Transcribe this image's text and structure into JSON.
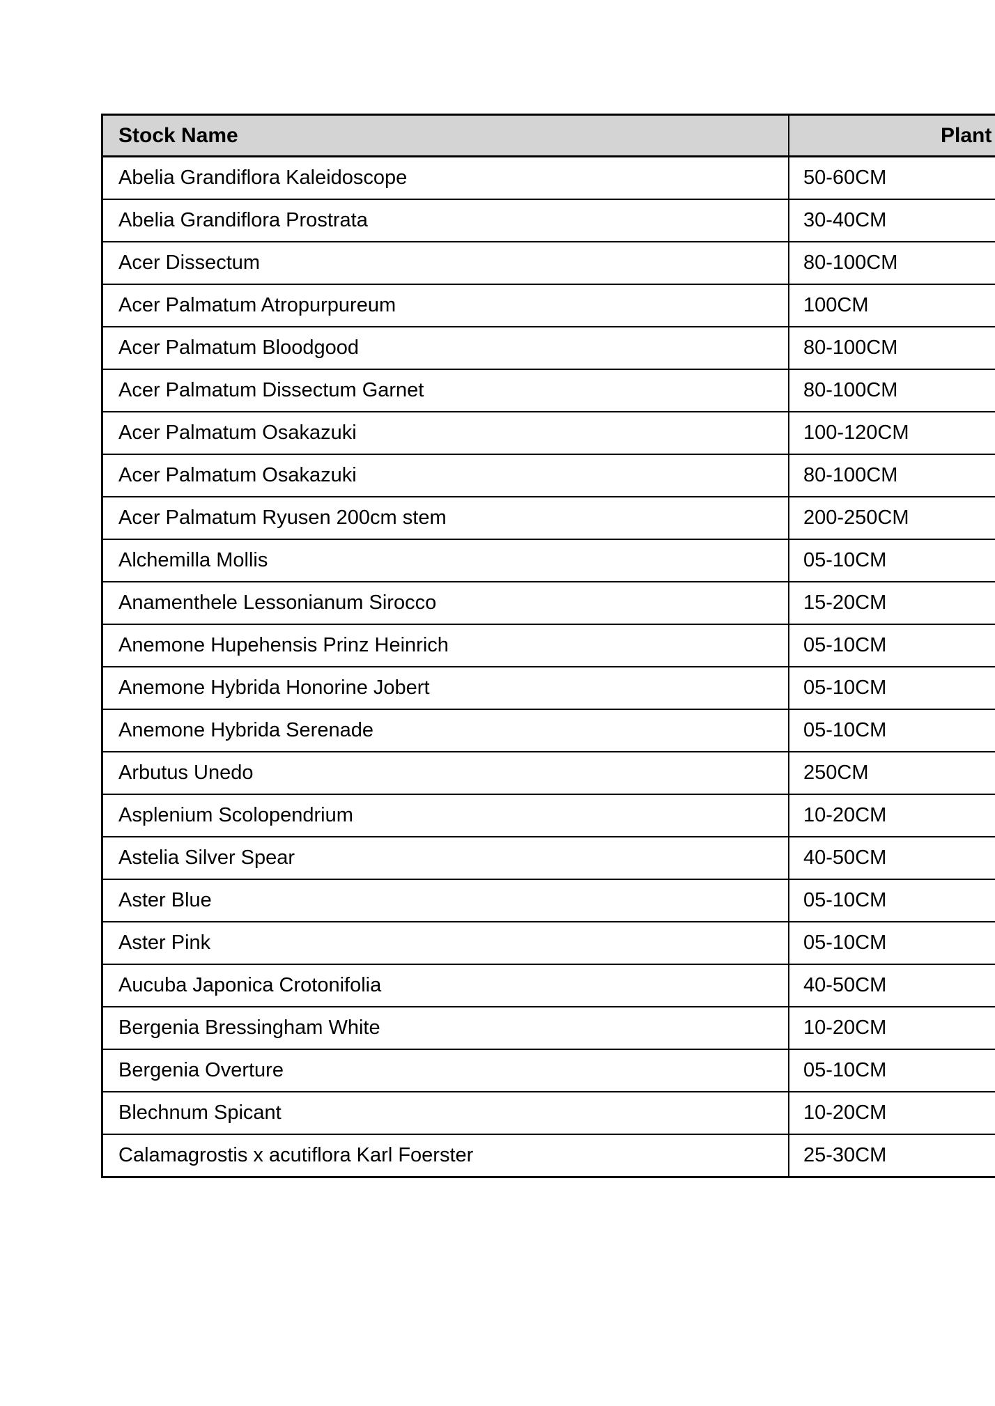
{
  "table": {
    "header": {
      "stock_name": "Stock Name",
      "plant_size": "Plant"
    },
    "rows": [
      {
        "name": "Abelia Grandiflora Kaleidoscope",
        "size": "50-60CM"
      },
      {
        "name": "Abelia Grandiflora Prostrata",
        "size": "30-40CM"
      },
      {
        "name": "Acer Dissectum",
        "size": "80-100CM"
      },
      {
        "name": "Acer Palmatum Atropurpureum",
        "size": "100CM"
      },
      {
        "name": "Acer Palmatum Bloodgood",
        "size": "80-100CM"
      },
      {
        "name": "Acer Palmatum Dissectum Garnet",
        "size": "80-100CM"
      },
      {
        "name": "Acer Palmatum Osakazuki",
        "size": "100-120CM"
      },
      {
        "name": "Acer Palmatum Osakazuki",
        "size": "80-100CM"
      },
      {
        "name": "Acer Palmatum Ryusen 200cm stem",
        "size": "200-250CM"
      },
      {
        "name": "Alchemilla Mollis",
        "size": "05-10CM"
      },
      {
        "name": "Anamenthele Lessonianum Sirocco",
        "size": "15-20CM"
      },
      {
        "name": "Anemone Hupehensis Prinz Heinrich",
        "size": "05-10CM"
      },
      {
        "name": "Anemone Hybrida Honorine Jobert",
        "size": "05-10CM"
      },
      {
        "name": "Anemone Hybrida Serenade",
        "size": "05-10CM"
      },
      {
        "name": "Arbutus Unedo",
        "size": "250CM"
      },
      {
        "name": "Asplenium Scolopendrium",
        "size": "10-20CM"
      },
      {
        "name": "Astelia Silver Spear",
        "size": "40-50CM"
      },
      {
        "name": "Aster Blue",
        "size": "05-10CM"
      },
      {
        "name": "Aster Pink",
        "size": "05-10CM"
      },
      {
        "name": "Aucuba Japonica Crotonifolia",
        "size": "40-50CM"
      },
      {
        "name": "Bergenia Bressingham White",
        "size": "10-20CM"
      },
      {
        "name": "Bergenia Overture",
        "size": "05-10CM"
      },
      {
        "name": "Blechnum Spicant",
        "size": "10-20CM"
      },
      {
        "name": "Calamagrostis x acutiflora Karl Foerster",
        "size": "25-30CM"
      }
    ]
  },
  "colors": {
    "page_bg": "#ffffff",
    "header_bg": "#d4d4d4",
    "border": "#000000",
    "text": "#000000"
  }
}
